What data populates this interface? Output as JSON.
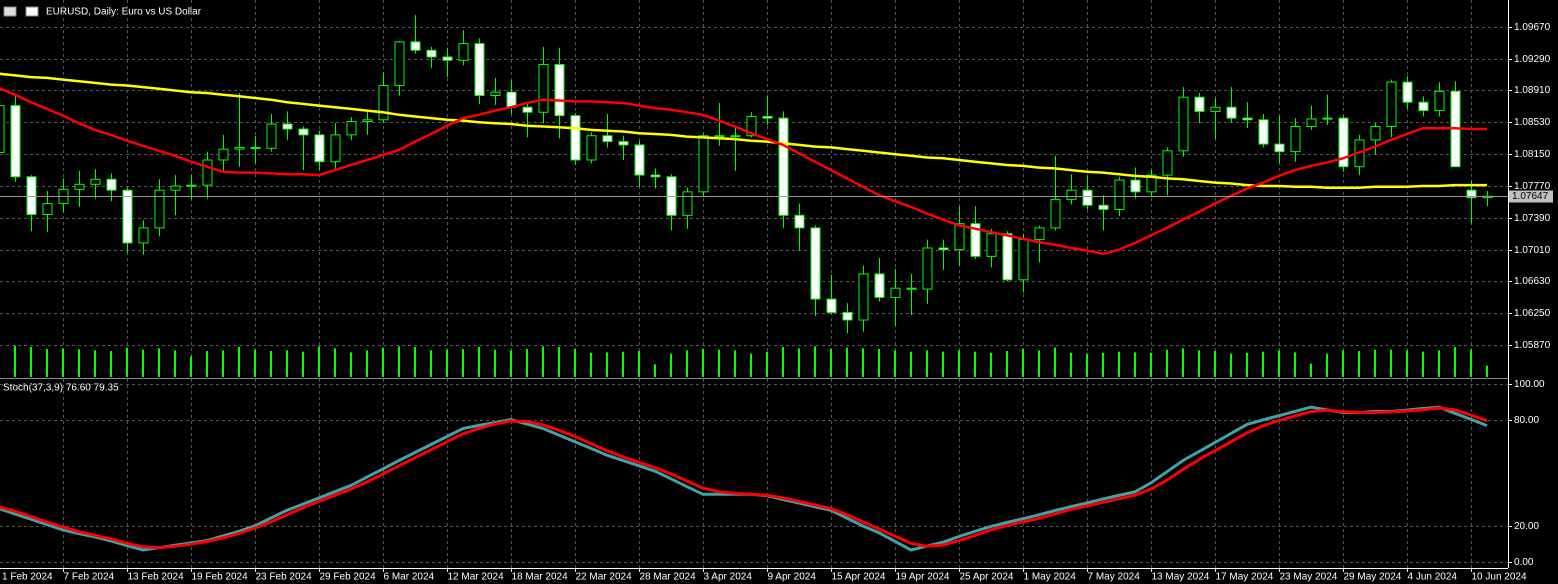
{
  "chart_data": [
    {
      "type": "candlestick",
      "title": "EURUSD, Daily:  Euro vs US Dollar",
      "categories": [
        "1 Feb 2024",
        null,
        null,
        null,
        "7 Feb 2024",
        null,
        null,
        null,
        "13 Feb 2024",
        null,
        null,
        null,
        "19 Feb 2024",
        null,
        null,
        null,
        "23 Feb 2024",
        null,
        null,
        null,
        "29 Feb 2024",
        null,
        null,
        null,
        "6 Mar 2024",
        null,
        null,
        null,
        "12 Mar 2024",
        null,
        null,
        null,
        "18 Mar 2024",
        null,
        null,
        null,
        "22 Mar 2024",
        null,
        null,
        null,
        "28 Mar 2024",
        null,
        null,
        null,
        "3 Apr 2024",
        null,
        null,
        null,
        "9 Apr 2024",
        null,
        null,
        null,
        "15 Apr 2024",
        null,
        null,
        null,
        "19 Apr 2024",
        null,
        null,
        null,
        "25 Apr 2024",
        null,
        null,
        null,
        "1 May 2024",
        null,
        null,
        null,
        "7 May 2024",
        null,
        null,
        null,
        "13 May 2024",
        null,
        null,
        null,
        "17 May 2024",
        null,
        null,
        null,
        "23 May 2024",
        null,
        null,
        null,
        "29 May 2024",
        null,
        null,
        null,
        "4 Jun 2024",
        null,
        null,
        null,
        "10 Jun 2024",
        null
      ],
      "open": [
        1.0817,
        1.0873,
        1.0788,
        1.0743,
        1.0756,
        1.0773,
        1.0779,
        1.0785,
        1.0772,
        1.0709,
        1.0727,
        1.0772,
        1.0777,
        1.0778,
        1.0808,
        1.0821,
        1.0823,
        1.0822,
        1.0851,
        1.0845,
        1.0838,
        1.0806,
        1.0838,
        1.0854,
        1.0856,
        1.0897,
        1.0949,
        1.0939,
        1.0931,
        1.0927,
        1.0947,
        1.0885,
        1.0889,
        1.0871,
        1.0865,
        1.0922,
        1.0861,
        1.0808,
        1.0837,
        1.083,
        1.0826,
        1.079,
        1.0788,
        1.0742,
        1.077,
        1.0837,
        1.0836,
        1.0837,
        1.086,
        1.0858,
        1.0742,
        1.0727,
        1.0642,
        1.0626,
        1.0617,
        1.0672,
        1.0644,
        1.0655,
        1.0654,
        1.0703,
        1.0701,
        1.0732,
        1.0693,
        1.072,
        1.0665,
        1.0713,
        1.0727,
        1.0761,
        1.0772,
        1.0754,
        1.0749,
        1.0784,
        1.077,
        1.079,
        1.0819,
        1.0883,
        1.0866,
        1.0871,
        1.0858,
        1.0856,
        1.0827,
        1.0818,
        1.0848,
        1.0857,
        1.0858,
        1.08,
        1.0832,
        1.0848,
        1.0901,
        1.0877,
        1.0867,
        1.089,
        1.0772,
        1.0763
      ],
      "high": [
        1.0889,
        1.0885,
        1.079,
        1.0771,
        1.0786,
        1.0795,
        1.0797,
        1.0792,
        1.0775,
        1.0736,
        1.0785,
        1.079,
        1.079,
        1.0818,
        1.0838,
        1.0888,
        1.0837,
        1.0863,
        1.0866,
        1.0848,
        1.0843,
        1.0852,
        1.0859,
        1.0868,
        1.0913,
        1.095,
        1.0981,
        1.0943,
        1.0942,
        1.0963,
        1.0953,
        1.0906,
        1.0903,
        1.0875,
        1.0943,
        1.0942,
        1.0864,
        1.0841,
        1.0863,
        1.0837,
        1.0831,
        1.0798,
        1.0791,
        1.0775,
        1.084,
        1.0876,
        1.0847,
        1.0865,
        1.0885,
        1.0866,
        1.0756,
        1.073,
        1.0671,
        1.0637,
        1.0682,
        1.0691,
        1.0678,
        1.0672,
        1.0713,
        1.0713,
        1.0753,
        1.0753,
        1.0726,
        1.0723,
        1.072,
        1.073,
        1.0813,
        1.0791,
        1.0789,
        1.0766,
        1.0788,
        1.0799,
        1.0797,
        1.0823,
        1.0895,
        1.0888,
        1.0882,
        1.0895,
        1.0877,
        1.0863,
        1.0861,
        1.0858,
        1.0873,
        1.0886,
        1.0861,
        1.0838,
        1.0852,
        1.0904,
        1.0908,
        1.0884,
        1.0901,
        1.0902,
        1.0783,
        1.0771
      ],
      "low": [
        1.0796,
        1.0782,
        1.0723,
        1.0722,
        1.0745,
        1.0752,
        1.0762,
        1.0759,
        1.0697,
        1.0695,
        1.0717,
        1.0742,
        1.0761,
        1.0762,
        1.0795,
        1.08,
        1.0804,
        1.0818,
        1.0832,
        1.0796,
        1.0796,
        1.0796,
        1.0832,
        1.0838,
        1.0852,
        1.0885,
        1.0935,
        1.0918,
        1.0907,
        1.0921,
        1.0875,
        1.0874,
        1.0863,
        1.0835,
        1.0852,
        1.0834,
        1.0802,
        1.0804,
        1.0823,
        1.0808,
        1.0776,
        1.0774,
        1.0724,
        1.0726,
        1.0765,
        1.0825,
        1.0795,
        1.0835,
        1.085,
        1.0727,
        1.07,
        1.0622,
        1.0624,
        1.0601,
        1.0603,
        1.0639,
        1.061,
        1.0623,
        1.0636,
        1.0677,
        1.0682,
        1.069,
        1.068,
        1.0663,
        1.065,
        1.0686,
        1.0724,
        1.0755,
        1.0749,
        1.0724,
        1.0741,
        1.0762,
        1.0764,
        1.0766,
        1.0812,
        1.0852,
        1.0833,
        1.0853,
        1.0846,
        1.0823,
        1.0804,
        1.0806,
        1.0844,
        1.085,
        1.0794,
        1.079,
        1.0814,
        1.0835,
        1.0869,
        1.086,
        1.086,
        1.0801,
        1.0732,
        1.0753
      ],
      "close": [
        1.0873,
        1.0788,
        1.0743,
        1.0756,
        1.0773,
        1.0779,
        1.0785,
        1.0772,
        1.0709,
        1.0727,
        1.0772,
        1.0777,
        1.0778,
        1.0808,
        1.0821,
        1.0823,
        1.0822,
        1.0851,
        1.0845,
        1.0838,
        1.0806,
        1.0838,
        1.0854,
        1.0856,
        1.0897,
        1.0949,
        1.0939,
        1.0931,
        1.0927,
        1.0947,
        1.0885,
        1.0889,
        1.0871,
        1.0865,
        1.0922,
        1.0861,
        1.0808,
        1.0837,
        1.083,
        1.0826,
        1.079,
        1.0788,
        1.0742,
        1.077,
        1.0837,
        1.0836,
        1.0837,
        1.086,
        1.0858,
        1.0742,
        1.0727,
        1.0642,
        1.0626,
        1.0617,
        1.0672,
        1.0644,
        1.0655,
        1.0654,
        1.0703,
        1.0701,
        1.0732,
        1.0693,
        1.072,
        1.0665,
        1.0713,
        1.0727,
        1.0761,
        1.0772,
        1.0754,
        1.0749,
        1.0784,
        1.077,
        1.079,
        1.0819,
        1.0883,
        1.0866,
        1.0871,
        1.0858,
        1.0856,
        1.0827,
        1.0818,
        1.0848,
        1.0857,
        1.0858,
        1.08,
        1.0832,
        1.0848,
        1.0901,
        1.0877,
        1.0867,
        1.089,
        1.08,
        1.0763,
        1.07647
      ],
      "bull_color": "#000000",
      "bear_color": "#ffffff",
      "wick_color": "#00ff00",
      "series": [
        {
          "color": "#ffff00",
          "values": [
            1.0911,
            1.0909,
            1.0907,
            1.0906,
            1.0904,
            1.0902,
            1.09,
            1.0898,
            1.0897,
            1.0895,
            1.0893,
            1.0891,
            1.0889,
            1.0888,
            1.0886,
            1.0884,
            1.0882,
            1.088,
            1.0877,
            1.0875,
            1.0873,
            1.0871,
            1.0869,
            1.0867,
            1.0865,
            1.0862,
            1.086,
            1.0858,
            1.0856,
            1.0855,
            1.0853,
            1.0852,
            1.0851,
            1.0849,
            1.0848,
            1.0847,
            1.0846,
            1.0844,
            1.0843,
            1.0842,
            1.084,
            1.0839,
            1.0838,
            1.0836,
            1.0835,
            1.0834,
            1.0833,
            1.0831,
            1.083,
            1.0828,
            1.0826,
            1.0824,
            1.0823,
            1.0821,
            1.0819,
            1.0817,
            1.0815,
            1.0813,
            1.0811,
            1.081,
            1.0808,
            1.0806,
            1.0804,
            1.0802,
            1.0801,
            1.0799,
            1.0798,
            1.0796,
            1.0794,
            1.0793,
            1.0791,
            1.0789,
            1.0788,
            1.0786,
            1.0785,
            1.0783,
            1.0781,
            1.078,
            1.0778,
            1.0777,
            1.0777,
            1.0776,
            1.0776,
            1.0775,
            1.0775,
            1.0775,
            1.0776,
            1.0776,
            1.0776,
            1.0777,
            1.0777,
            1.0778,
            1.0778,
            1.0778
          ]
        },
        {
          "color": "#ff0000",
          "values": [
            1.0894,
            1.0886,
            1.0877,
            1.0869,
            1.0861,
            1.0852,
            1.0844,
            1.0838,
            1.0831,
            1.0825,
            1.0819,
            1.0813,
            1.0806,
            1.08,
            1.0794,
            1.0793,
            1.0793,
            1.0792,
            1.0791,
            1.0791,
            1.079,
            1.0796,
            1.0802,
            1.0808,
            1.0814,
            1.082,
            1.083,
            1.0839,
            1.0849,
            1.0858,
            1.0862,
            1.0867,
            1.0871,
            1.0876,
            1.088,
            1.0879,
            1.0878,
            1.0878,
            1.0877,
            1.0876,
            1.0873,
            1.087,
            1.0868,
            1.0865,
            1.0862,
            1.0855,
            1.0848,
            1.084,
            1.0833,
            1.0826,
            1.0816,
            1.0806,
            1.0796,
            1.0786,
            1.0776,
            1.0766,
            1.0759,
            1.0752,
            1.0744,
            1.0737,
            1.073,
            1.0726,
            1.0722,
            1.0718,
            1.0714,
            1.071,
            1.0707,
            1.0703,
            1.07,
            1.0696,
            1.0701,
            1.0709,
            1.0718,
            1.0727,
            1.0737,
            1.0746,
            1.0756,
            1.0765,
            1.0774,
            1.0781,
            1.0789,
            1.0796,
            1.0801,
            1.0805,
            1.081,
            1.0817,
            1.0824,
            1.0832,
            1.0839,
            1.0846,
            1.0846,
            1.0846,
            1.0845,
            1.0845
          ]
        }
      ],
      "volume": [
        86000,
        94000,
        90000,
        84000,
        85000,
        83000,
        80000,
        78000,
        88000,
        82000,
        86000,
        80000,
        62000,
        78000,
        80000,
        90000,
        82000,
        78000,
        80000,
        76000,
        92000,
        86000,
        74000,
        80000,
        88000,
        92000,
        90000,
        80000,
        82000,
        84000,
        90000,
        82000,
        80000,
        84000,
        92000,
        90000,
        84000,
        72000,
        74000,
        76000,
        78000,
        38000,
        70000,
        80000,
        84000,
        82000,
        80000,
        70000,
        76000,
        90000,
        86000,
        92000,
        84000,
        88000,
        86000,
        84000,
        80000,
        76000,
        80000,
        76000,
        80000,
        76000,
        72000,
        78000,
        84000,
        80000,
        88000,
        72000,
        70000,
        72000,
        76000,
        74000,
        72000,
        82000,
        86000,
        80000,
        78000,
        70000,
        72000,
        76000,
        80000,
        74000,
        40000,
        70000,
        80000,
        78000,
        82000,
        82000,
        80000,
        76000,
        80000,
        90000,
        82000,
        34000
      ],
      "volume_color": "#00ff00",
      "vlim": [
        0,
        120000
      ],
      "bid": 1.07647,
      "ylim": [
        1.0549,
        1.0999
      ],
      "yticks": [
        {
          "value": 1.0967,
          "label": "1.09670"
        },
        {
          "value": 1.0929,
          "label": "1.09290"
        },
        {
          "value": 1.0891,
          "label": "1.08910"
        },
        {
          "value": 1.0853,
          "label": "1.08530"
        },
        {
          "value": 1.0815,
          "label": "1.08150"
        },
        {
          "value": 1.0777,
          "label": "1.07770"
        },
        {
          "value": 1.0739,
          "label": "1.07390"
        },
        {
          "value": 1.0701,
          "label": "1.07010"
        },
        {
          "value": 1.0663,
          "label": "1.06630"
        },
        {
          "value": 1.0625,
          "label": "1.06250"
        },
        {
          "value": 1.0587,
          "label": "1.05870"
        }
      ],
      "grid": true
    },
    {
      "type": "line",
      "title": "Stoch(37,3,9) 76.60 79.35",
      "series": [
        {
          "color": "#3fa3a8",
          "values": [
            30,
            27,
            24,
            21,
            18,
            15.9,
            14.1,
            11.8,
            9.2,
            6.7,
            8,
            9.4,
            10.7,
            12,
            14.6,
            17.2,
            20.3,
            24.7,
            29,
            32.5,
            36,
            39.5,
            43,
            47.7,
            52.3,
            57,
            61.5,
            66,
            70.5,
            75,
            76.7,
            78.3,
            80,
            77.5,
            75,
            71.3,
            67.5,
            63.8,
            60,
            57,
            54,
            51,
            46.7,
            42.3,
            38,
            38,
            38,
            38,
            37.2,
            35.1,
            33.1,
            31,
            29,
            24.6,
            20.2,
            16.4,
            11.6,
            6.7,
            8.9,
            11.1,
            14.3,
            17.2,
            20,
            22.2,
            24.3,
            26.5,
            28.9,
            31.1,
            33.2,
            35.4,
            37.4,
            39.4,
            44.4,
            50.7,
            57,
            62,
            67.1,
            72.2,
            77.3,
            79.8,
            82.2,
            84.6,
            87,
            85.5,
            84,
            83.9,
            84.6,
            84.6,
            85.3,
            86.2,
            87,
            83.5,
            80.1,
            76.6
          ]
        },
        {
          "color": "#ff0000",
          "values": [
            31,
            28.5,
            25.5,
            22.5,
            19.5,
            17,
            15,
            13,
            10.5,
            8.5,
            8,
            8.8,
            10,
            11.5,
            13.5,
            16,
            19,
            22.5,
            26.5,
            30.5,
            34,
            37.5,
            41,
            45,
            49.5,
            54,
            58.5,
            63,
            67.5,
            72,
            75,
            77.5,
            79.2,
            79,
            77,
            74,
            70.5,
            66.5,
            62.5,
            59,
            56,
            53,
            49.5,
            45.5,
            41.5,
            39.5,
            38.5,
            38,
            37.5,
            36,
            34,
            32,
            30,
            26.5,
            22.5,
            18.5,
            14.5,
            10.5,
            8.8,
            9.5,
            12,
            15,
            18,
            20.5,
            22.5,
            24.5,
            27,
            29.5,
            31.5,
            33.5,
            35.5,
            37.5,
            41,
            46,
            52,
            57.5,
            62.5,
            67.5,
            72.5,
            76.5,
            79.5,
            82,
            84.5,
            85.3,
            84.5,
            84,
            84,
            84.3,
            84.8,
            85.5,
            86.5,
            85.5,
            82.5,
            79.35
          ]
        }
      ],
      "ylim": [
        -3.4,
        102.8
      ],
      "yticks": [
        {
          "value": 100,
          "label": "100.00"
        },
        {
          "value": 80,
          "label": "80.00"
        },
        {
          "value": 20,
          "label": "20.00"
        },
        {
          "value": 0,
          "label": "0.00"
        }
      ],
      "grid": true
    }
  ]
}
